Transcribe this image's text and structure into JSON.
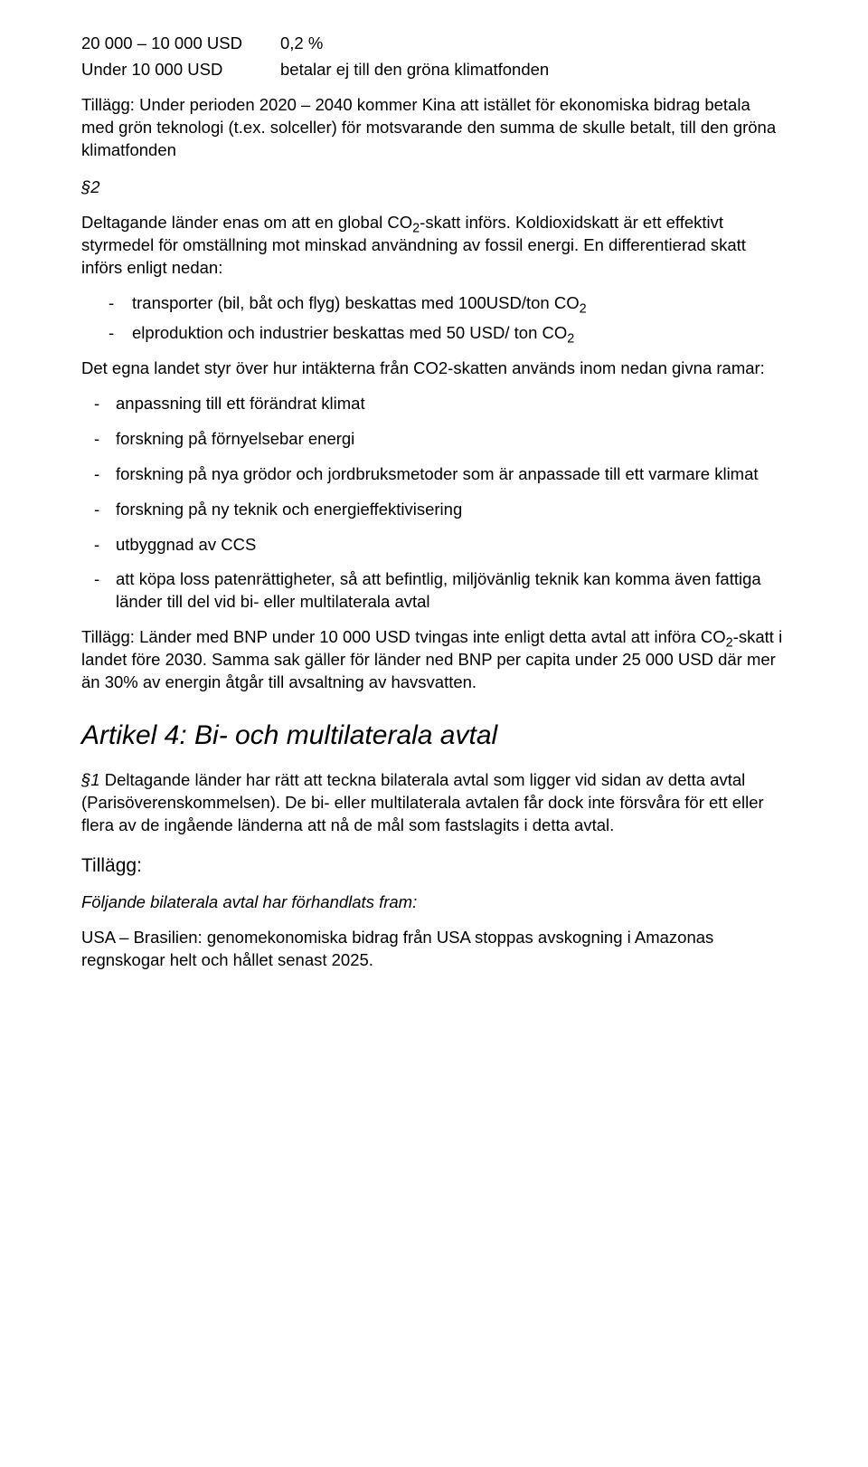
{
  "colors": {
    "text": "#000000",
    "background": "#ffffff"
  },
  "typography": {
    "body_font": "Trebuchet MS",
    "body_size_pt": 14,
    "heading_size_pt": 22,
    "heading_style": "italic"
  },
  "table": {
    "rows": [
      {
        "col1": "20 000 – 10 000 USD",
        "col2": "0,2 %"
      },
      {
        "col1": "Under 10 000 USD",
        "col2": "betalar ej till den gröna klimatfonden"
      }
    ]
  },
  "tillagg1": "Tillägg: Under perioden 2020 – 2040 kommer Kina att istället för ekonomiska bidrag betala med grön teknologi (t.ex. solceller) för motsvarande den summa de skulle betalt, till den gröna klimatfonden",
  "section2": {
    "label": "§2",
    "intro_a": "Deltagande länder enas om att en global CO",
    "intro_b": "-skatt införs. Koldioxidskatt är ett effektivt styrmedel för omställning mot minskad användning av fossil energi. En differentierad skatt införs enligt nedan:",
    "bullets1": [
      {
        "pre": "transporter (bil, båt och flyg) beskattas med 100USD/ton CO",
        "sub": "2"
      },
      {
        "pre": "elproduktion och industrier beskattas med 50 USD/ ton CO",
        "sub": "2"
      }
    ],
    "mid": "Det egna landet styr över hur intäkterna från CO2-skatten används inom nedan givna ramar:",
    "bullets2": [
      "anpassning till ett förändrat klimat",
      "forskning på förnyelsebar energi",
      "forskning på nya grödor och jordbruksmetoder som är anpassade till ett varmare klimat",
      "forskning på ny teknik och energieffektivisering",
      "utbyggnad av CCS",
      "att köpa loss patenrättigheter, så att befintlig, miljövänlig teknik kan komma även fattiga länder till del vid bi- eller multilaterala avtal"
    ],
    "tillagg_a": "Tillägg: Länder med BNP under 10 000 USD tvingas inte enligt detta avtal att införa CO",
    "tillagg_b": "-skatt i landet före 2030. Samma sak gäller för länder ned BNP per capita under 25 000 USD där mer än 30% av energin åtgår till avsaltning av havsvatten."
  },
  "article4": {
    "title": "Artikel 4: Bi- och multilaterala avtal",
    "p1_label": "§1",
    "p1_text": " Deltagande länder har rätt att teckna bilaterala avtal som ligger vid sidan av detta avtal (Parisöverenskommelsen). De bi- eller multilaterala avtalen får dock inte försvåra för ett eller flera av de ingående länderna att nå de mål som fastslagits i detta avtal.",
    "tillagg_head": "Tillägg:",
    "sub_ital": "Följande bilaterala avtal har förhandlats fram:",
    "p2": "USA – Brasilien: genomekonomiska bidrag från USA stoppas avskogning i Amazonas regnskogar helt och hållet senast 2025."
  }
}
